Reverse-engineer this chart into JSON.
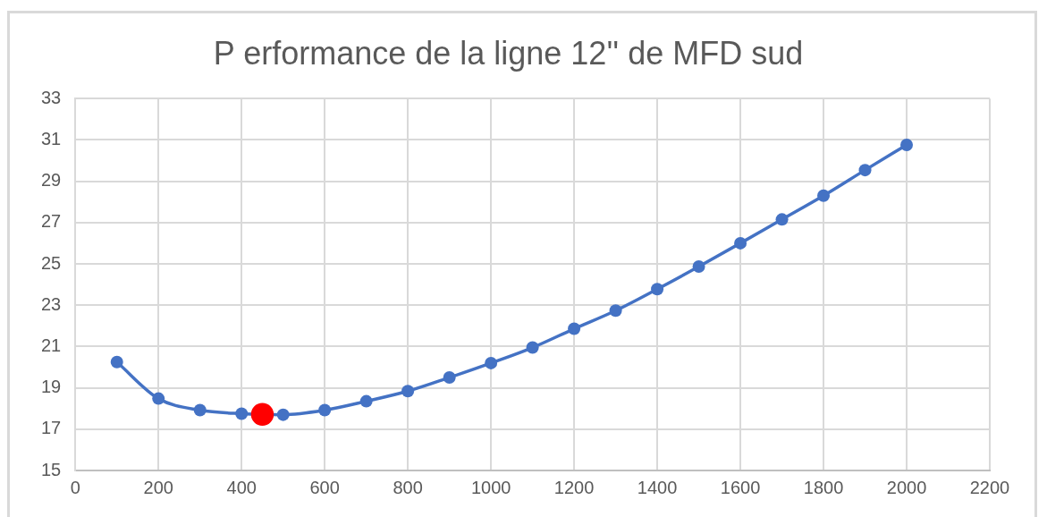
{
  "chart_data": {
    "type": "line",
    "title": "P erformance de la ligne 12'' de MFD sud",
    "series": [
      {
        "color": "#4472c4",
        "x": [
          100,
          200,
          300,
          400,
          500,
          600,
          700,
          800,
          900,
          1000,
          1100,
          1200,
          1300,
          1400,
          1500,
          1600,
          1700,
          1800,
          1900,
          2000
        ],
        "values": [
          20.25,
          18.48,
          17.92,
          17.75,
          17.7,
          17.92,
          18.35,
          18.84,
          19.5,
          20.2,
          20.95,
          21.86,
          22.74,
          23.78,
          24.87,
          26.0,
          27.15,
          28.3,
          29.54,
          30.76
        ]
      },
      {
        "type": "scatter",
        "color": "#ff0000",
        "x": [
          450
        ],
        "values": [
          17.72
        ]
      }
    ],
    "xlim": [
      0,
      2200
    ],
    "xticks": [
      0,
      200,
      400,
      600,
      800,
      1000,
      1200,
      1400,
      1600,
      1800,
      2000,
      2200
    ],
    "ylim": [
      15,
      33
    ],
    "yticks": [
      15,
      17,
      19,
      21,
      23,
      25,
      27,
      29,
      31,
      33
    ],
    "grid": true,
    "marker": "circle"
  }
}
